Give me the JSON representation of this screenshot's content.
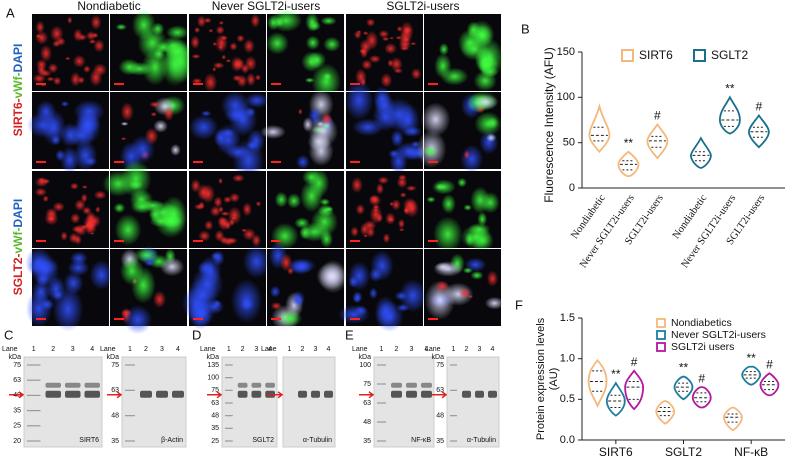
{
  "panel_labels": [
    "A",
    "B",
    "C",
    "D",
    "E",
    "F"
  ],
  "panel_a": {
    "columns": [
      "Nondiabetic",
      "Never SGLT2i-users",
      "SGLT2i-users"
    ],
    "row_labels": [
      {
        "parts": [
          {
            "text": "SIRT6",
            "color": "#d42020"
          },
          {
            "text": "-",
            "color": "#d42020"
          },
          {
            "text": "vWf",
            "color": "#5cb82e"
          },
          {
            "text": "-",
            "color": "#5cb82e"
          },
          {
            "text": "DAPI",
            "color": "#2060c0"
          }
        ]
      },
      {
        "parts": [
          {
            "text": "SGLT2",
            "color": "#d42020"
          },
          {
            "text": "-",
            "color": "#d42020"
          },
          {
            "text": "vWf",
            "color": "#5cb82e"
          },
          {
            "text": "-",
            "color": "#5cb82e"
          },
          {
            "text": "DAPI",
            "color": "#2060c0"
          }
        ]
      }
    ]
  },
  "blots": {
    "lane_label": "Lane",
    "lanes": [
      "1",
      "2",
      "3",
      "4"
    ],
    "unit": "kDa",
    "items": [
      {
        "target": "SIRT6",
        "markers": [
          75,
          63,
          48,
          35,
          25,
          20
        ]
      },
      {
        "target": "β-Actin",
        "markers": [
          75,
          63,
          48,
          35
        ]
      },
      {
        "target": "SGLT2",
        "markers": [
          135,
          100,
          75,
          63,
          48,
          35,
          25
        ]
      },
      {
        "target": "α-Tubulin"
      },
      {
        "target": "NF-κB",
        "markers": [
          100,
          75,
          63,
          48,
          35
        ]
      },
      {
        "target": "α-Tubulin",
        "markers": [
          75,
          63,
          48,
          35
        ]
      }
    ]
  },
  "chart_data": [
    {
      "type": "violin",
      "ylabel": "Fluorescence Intensity (AFU)",
      "categories": [
        "Nondiabetic",
        "Never SGLT2i-users",
        "SGLT2i-users"
      ],
      "ylim": [
        0,
        150
      ],
      "yticks": [
        0,
        50,
        100,
        150
      ],
      "series": [
        {
          "name": "SIRT6",
          "color": "#f5b87a",
          "median": [
            58,
            26,
            52
          ],
          "q1": [
            52,
            20,
            45
          ],
          "q3": [
            67,
            30,
            57
          ],
          "min": [
            40,
            13,
            33
          ],
          "max": [
            90,
            40,
            70
          ],
          "annotations": [
            null,
            "**",
            "#"
          ]
        },
        {
          "name": "SGLT2",
          "color": "#1a6f8f",
          "median": [
            36,
            75,
            62
          ],
          "q1": [
            30,
            68,
            56
          ],
          "q3": [
            40,
            85,
            67
          ],
          "min": [
            22,
            60,
            45
          ],
          "max": [
            55,
            100,
            80
          ],
          "annotations": [
            null,
            "**",
            "#"
          ]
        }
      ]
    },
    {
      "type": "violin",
      "ylabel_lines": [
        "Protein expression levels",
        "(AU)"
      ],
      "categories": [
        "SIRT6",
        "SGLT2",
        "NF-κB"
      ],
      "ylim": [
        0,
        1.5
      ],
      "yticks": [
        {
          "value": 0,
          "label": "0.0"
        },
        {
          "value": 0.5,
          "label": "0.5"
        },
        {
          "value": 1,
          "label": "1.0"
        },
        {
          "value": 1.5,
          "label": "1.5"
        }
      ],
      "series": [
        {
          "name": "Nondiabetics",
          "color": "#f5b87a",
          "median": [
            0.72,
            0.35,
            0.28
          ],
          "q1": [
            0.6,
            0.3,
            0.22
          ],
          "q3": [
            0.85,
            0.4,
            0.32
          ],
          "min": [
            0.42,
            0.2,
            0.12
          ],
          "max": [
            0.98,
            0.48,
            0.4
          ],
          "annotations": [
            null,
            null,
            null
          ]
        },
        {
          "name": "Never SGLT2i-users",
          "color": "#1a7f9f",
          "median": [
            0.48,
            0.65,
            0.8
          ],
          "q1": [
            0.4,
            0.6,
            0.76
          ],
          "q3": [
            0.55,
            0.7,
            0.84
          ],
          "min": [
            0.3,
            0.5,
            0.68
          ],
          "max": [
            0.7,
            0.78,
            0.9
          ],
          "annotations": [
            "**",
            "**",
            "**"
          ]
        },
        {
          "name": "SGLT2i users",
          "color": "#b5179e",
          "median": [
            0.65,
            0.52,
            0.68
          ],
          "q1": [
            0.5,
            0.47,
            0.62
          ],
          "q3": [
            0.72,
            0.58,
            0.72
          ],
          "min": [
            0.38,
            0.4,
            0.55
          ],
          "max": [
            0.85,
            0.65,
            0.82
          ],
          "annotations": [
            "#",
            "#",
            "#"
          ]
        }
      ]
    }
  ]
}
